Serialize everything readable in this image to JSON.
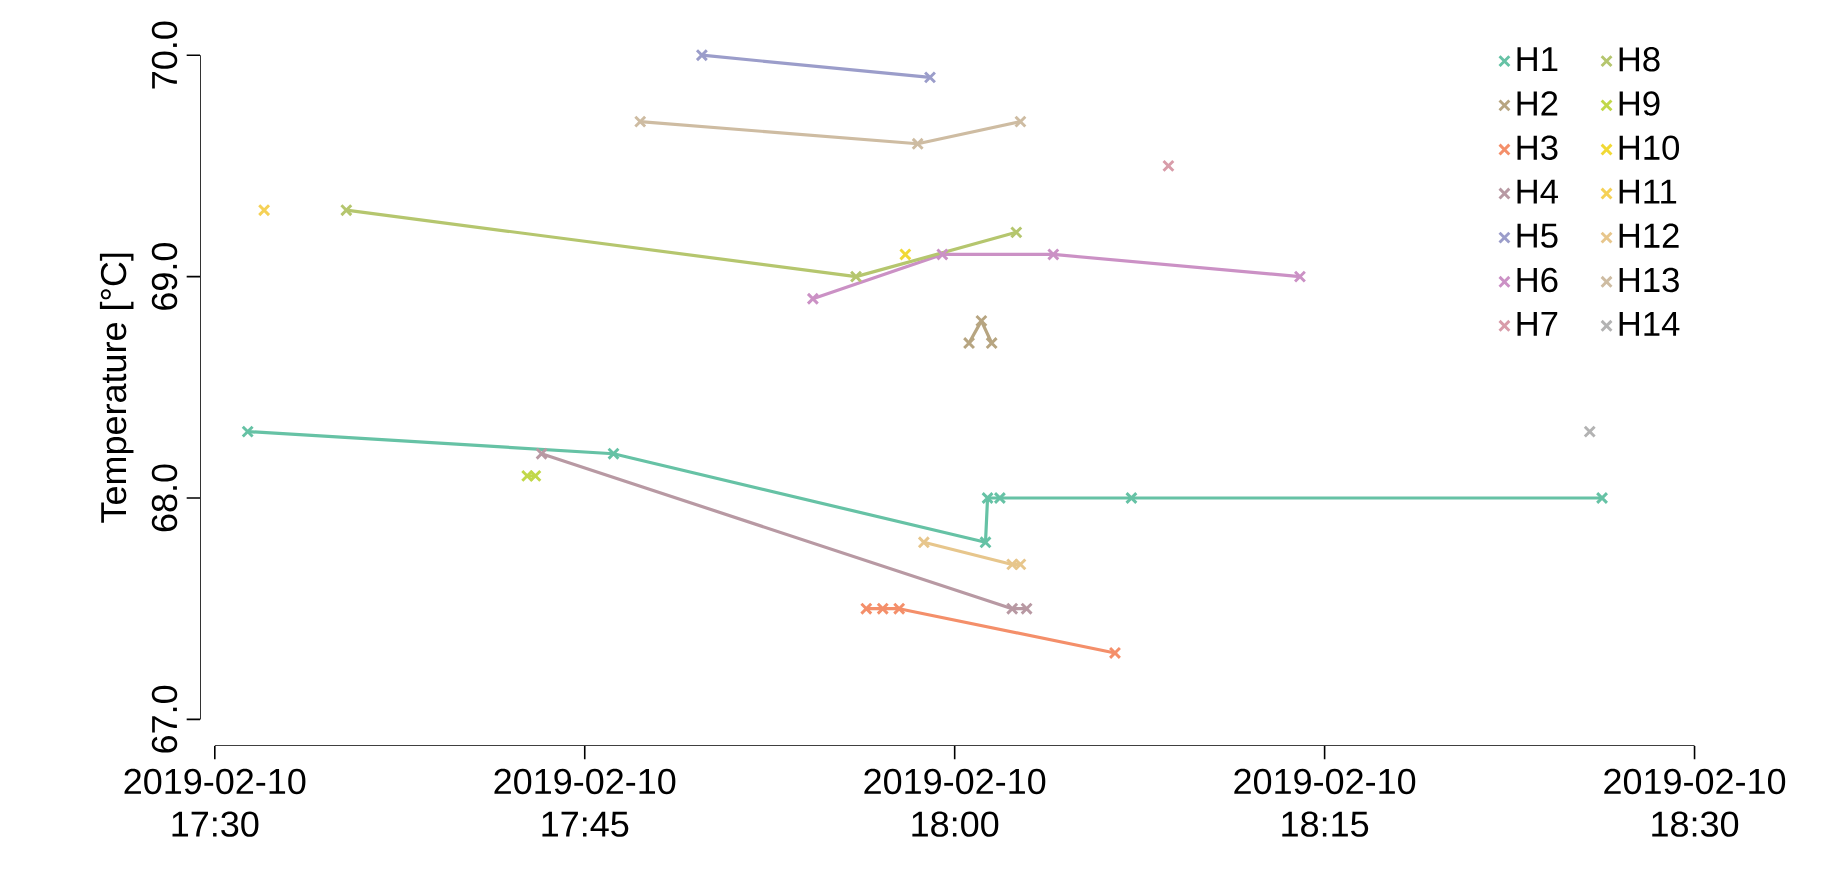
{
  "chart_data": {
    "type": "line",
    "ylabel": "Temperature [°C]",
    "xlim": [
      "2019-02-10T17:30",
      "2019-02-10T18:30"
    ],
    "ylim": [
      67,
      70
    ],
    "xticks": [
      {
        "value": "2019-02-10T17:30",
        "label": "2019-02-10 17:30"
      },
      {
        "value": "2019-02-10T17:45",
        "label": "2019-02-10 17:45"
      },
      {
        "value": "2019-02-10T18:00",
        "label": "2019-02-10 18:00"
      },
      {
        "value": "2019-02-10T18:15",
        "label": "2019-02-10 18:15"
      },
      {
        "value": "2019-02-10T18:30",
        "label": "2019-02-10 18:30"
      }
    ],
    "yticks": [
      {
        "value": 67,
        "label": "67.0"
      },
      {
        "value": 68,
        "label": "68.0"
      },
      {
        "value": 69,
        "label": "69.0"
      },
      {
        "value": 70,
        "label": "70.0"
      }
    ],
    "grid": false,
    "legend": "top right",
    "marker": "cross",
    "line_style": "solid",
    "series": [
      {
        "name": "H1",
        "color": "#66c2a5",
        "x": [
          "2019-02-10T17:31:20",
          "2019-02-10T17:46:10",
          "2019-02-10T18:01:15",
          "2019-02-10T18:01:20",
          "2019-02-10T18:01:50",
          "2019-02-10T18:07:10",
          "2019-02-10T18:26:15"
        ],
        "values": [
          68.3,
          68.2,
          67.8,
          68.0,
          68.0,
          68.0,
          68.0
        ]
      },
      {
        "name": "H2",
        "color": "#b7a581",
        "x": [
          "2019-02-10T18:00:35",
          "2019-02-10T18:01:05",
          "2019-02-10T18:01:30"
        ],
        "values": [
          68.7,
          68.8,
          68.7
        ]
      },
      {
        "name": "H3",
        "color": "#f48f6a",
        "x": [
          "2019-02-10T17:56:25",
          "2019-02-10T17:57:05",
          "2019-02-10T17:57:45",
          "2019-02-10T18:06:30"
        ],
        "values": [
          67.5,
          67.5,
          67.5,
          67.3
        ]
      },
      {
        "name": "H4",
        "color": "#b899a3",
        "x": [
          "2019-02-10T17:43:15",
          "2019-02-10T18:02:20",
          "2019-02-10T18:02:55"
        ],
        "values": [
          68.2,
          67.5,
          67.5
        ]
      },
      {
        "name": "H5",
        "color": "#9b9dca",
        "x": [
          "2019-02-10T17:49:45",
          "2019-02-10T17:59:00"
        ],
        "values": [
          70.0,
          69.9
        ]
      },
      {
        "name": "H6",
        "color": "#cb91c5",
        "x": [
          "2019-02-10T17:54:15",
          "2019-02-10T17:59:30",
          "2019-02-10T18:04:00",
          "2019-02-10T18:14:00"
        ],
        "values": [
          68.9,
          69.1,
          69.1,
          69.0
        ]
      },
      {
        "name": "H7",
        "color": "#d89ca9",
        "x": [
          "2019-02-10T18:08:40"
        ],
        "values": [
          69.5
        ]
      },
      {
        "name": "H8",
        "color": "#b5c66e",
        "x": [
          "2019-02-10T17:35:20",
          "2019-02-10T17:56:00",
          "2019-02-10T18:02:30"
        ],
        "values": [
          69.3,
          69.0,
          69.2
        ]
      },
      {
        "name": "H9",
        "color": "#c1d849",
        "x": [
          "2019-02-10T17:42:40",
          "2019-02-10T17:43:00"
        ],
        "values": [
          68.1,
          68.1
        ]
      },
      {
        "name": "H10",
        "color": "#f1d935",
        "x": [
          "2019-02-10T17:58:00"
        ],
        "values": [
          69.1
        ]
      },
      {
        "name": "H11",
        "color": "#f5d156",
        "x": [
          "2019-02-10T17:32:00"
        ],
        "values": [
          69.3
        ]
      },
      {
        "name": "H12",
        "color": "#e7c68c",
        "x": [
          "2019-02-10T17:58:45",
          "2019-02-10T18:02:20",
          "2019-02-10T18:02:40"
        ],
        "values": [
          67.8,
          67.7,
          67.7
        ]
      },
      {
        "name": "H13",
        "color": "#cebca2",
        "x": [
          "2019-02-10T17:47:15",
          "2019-02-10T17:58:30",
          "2019-02-10T18:02:40"
        ],
        "values": [
          69.7,
          69.6,
          69.7
        ]
      },
      {
        "name": "H14",
        "color": "#b3b3b3",
        "x": [
          "2019-02-10T18:25:45"
        ],
        "values": [
          68.3
        ]
      }
    ]
  }
}
